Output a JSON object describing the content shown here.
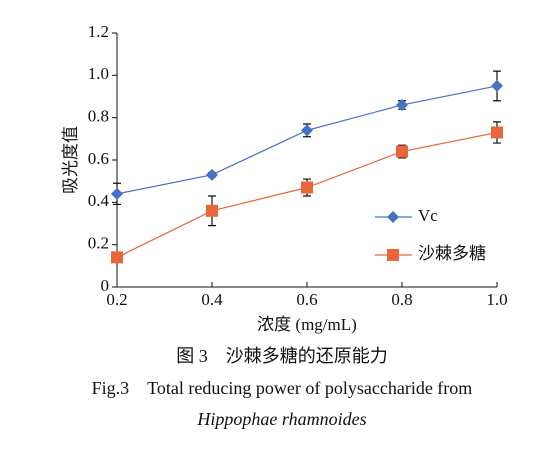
{
  "chart_data": {
    "type": "line",
    "y_label": "吸光度值",
    "x_label": "浓度 (mg/mL)",
    "x": [
      0.2,
      0.4,
      0.6,
      0.8,
      1.0
    ],
    "series": [
      {
        "name": "Vc",
        "color": "#4472c4",
        "marker": "diamond",
        "values": [
          0.44,
          0.53,
          0.74,
          0.86,
          0.95
        ],
        "errors": [
          0.05,
          0.01,
          0.03,
          0.02,
          0.07
        ]
      },
      {
        "name": "沙棘多糖",
        "color": "#e8663a",
        "marker": "square",
        "values": [
          0.14,
          0.36,
          0.47,
          0.64,
          0.73
        ],
        "errors": [
          0.01,
          0.07,
          0.04,
          0.03,
          0.05
        ]
      }
    ],
    "xlim": [
      0.2,
      1.0
    ],
    "xticks": [
      0.2,
      0.4,
      0.6,
      0.8,
      {
        "value": 1.0,
        "label": "1.0"
      }
    ],
    "ylim": [
      0,
      1.2
    ],
    "yticks": [
      0,
      0.2,
      0.4,
      0.6,
      0.8,
      {
        "value": 1.0,
        "label": "1.0"
      },
      1.2
    ],
    "grid": false,
    "caption_cn": "图 3　沙棘多糖的还原能力",
    "caption_en": "Fig.3　Total reducing power of polysaccharide from",
    "caption_species": "Hippophae rhamnoides"
  }
}
